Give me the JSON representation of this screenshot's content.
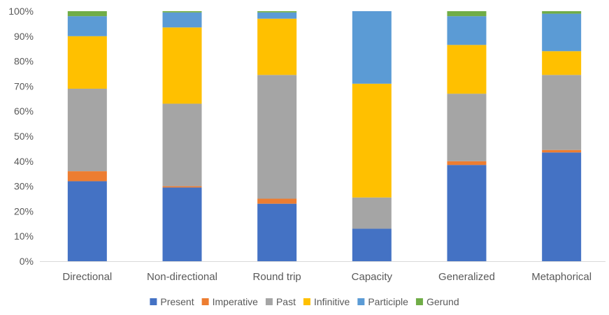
{
  "chart_data": {
    "type": "bar",
    "stacked": true,
    "categories": [
      "Directional",
      "Non-directional",
      "Round trip",
      "Capacity",
      "Generalized",
      "Metaphorical"
    ],
    "y_ticks": [
      "0%",
      "10%",
      "20%",
      "30%",
      "40%",
      "50%",
      "60%",
      "70%",
      "80%",
      "90%",
      "100%"
    ],
    "ylim": [
      0,
      100
    ],
    "grid": false,
    "legend_position": "bottom",
    "series": [
      {
        "name": "Present",
        "color": "#4472C4",
        "values": [
          32,
          29.5,
          23,
          13,
          38.5,
          43.5
        ]
      },
      {
        "name": "Imperative",
        "color": "#ED7D31",
        "values": [
          4,
          0.5,
          2,
          0,
          1.5,
          1
        ]
      },
      {
        "name": "Past",
        "color": "#A5A5A5",
        "values": [
          33,
          33,
          49.5,
          12.5,
          27,
          30
        ]
      },
      {
        "name": "Infinitive",
        "color": "#FFC000",
        "values": [
          21,
          30.5,
          22.5,
          45.5,
          19.5,
          9.5
        ]
      },
      {
        "name": "Participle",
        "color": "#5B9BD5",
        "values": [
          8,
          6,
          2.5,
          29,
          11.5,
          15
        ]
      },
      {
        "name": "Gerund",
        "color": "#70AD47",
        "values": [
          2,
          0.5,
          0.5,
          0,
          2,
          1
        ]
      }
    ]
  }
}
